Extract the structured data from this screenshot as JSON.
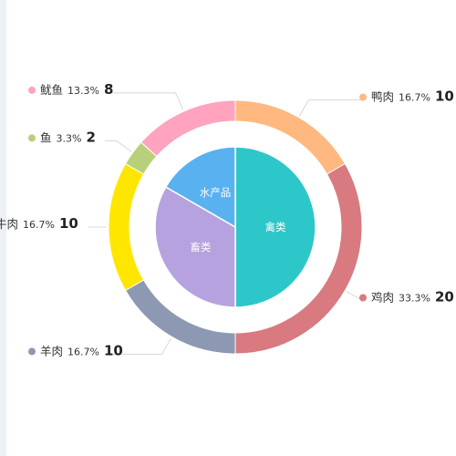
{
  "chart_data": {
    "type": "pie",
    "outer": {
      "slices": [
        {
          "name": "鸭肉",
          "percent": "16.7%",
          "value": 10,
          "color": "#ffb980"
        },
        {
          "name": "鸡肉",
          "percent": "33.3%",
          "value": 20,
          "color": "#d87a80"
        },
        {
          "name": "羊肉",
          "percent": "16.7%",
          "value": 10,
          "color": "#8d98b3"
        },
        {
          "name": "牛肉",
          "percent": "16.7%",
          "value": 10,
          "color": "#ffe600"
        },
        {
          "name": "鱼",
          "percent": "3.3%",
          "value": 2,
          "color": "#b9d07a"
        },
        {
          "name": "鱿鱼",
          "percent": "13.3%",
          "value": 8,
          "color": "#ffa3be"
        }
      ]
    },
    "inner": {
      "slices": [
        {
          "name": "禽类",
          "value": 30,
          "color": "#2ec7c9"
        },
        {
          "name": "畜类",
          "value": 20,
          "color": "#b6a2de"
        },
        {
          "name": "水产品",
          "value": 10,
          "color": "#5ab1ef"
        }
      ]
    }
  }
}
